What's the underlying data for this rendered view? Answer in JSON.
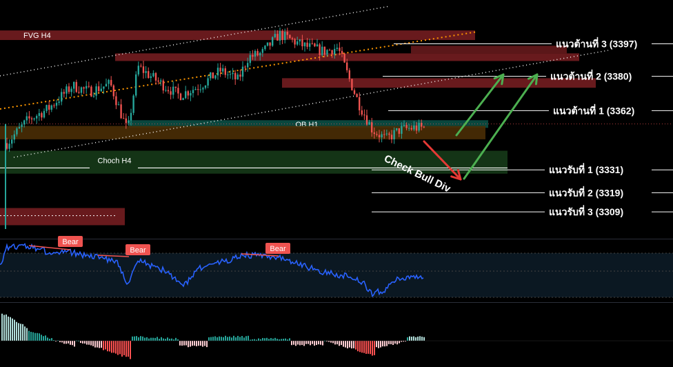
{
  "chart_data": {
    "type": "candlestick",
    "title": "",
    "ylim": [
      3300,
      3412
    ],
    "zones": [
      {
        "label": "FVG H4",
        "kind": "fvg",
        "from": 3404,
        "to": 3399
      },
      {
        "label": "",
        "kind": "fvg",
        "from": 3392,
        "to": 3388
      },
      {
        "label": "",
        "kind": "fvg",
        "from": 3396,
        "to": 3392
      },
      {
        "label": "",
        "kind": "fvg",
        "from": 3379,
        "to": 3374
      },
      {
        "label": "OB H1",
        "kind": "ob",
        "from": 3357,
        "to": 3353
      },
      {
        "label": "",
        "kind": "demand",
        "from": 3354,
        "to": 3347
      },
      {
        "label": "Choch H4",
        "kind": "choch",
        "from": 3341,
        "to": 3329
      },
      {
        "label": "",
        "kind": "fvg",
        "from": 3311,
        "to": 3302
      }
    ],
    "levels": [
      {
        "label": "แนวต้านที่ 3 (3397)",
        "value": 3397
      },
      {
        "label": "แนวต้านที่ 2 (3380)",
        "value": 3380
      },
      {
        "label": "แนวต้านที่ 1 (3362)",
        "value": 3362
      },
      {
        "label": "แนวรับที่ 1 (3331)",
        "value": 3331
      },
      {
        "label": "แนวรับที่ 2 (3319)",
        "value": 3319
      },
      {
        "label": "แนวรับที่ 3 (3309)",
        "value": 3309
      }
    ],
    "annotation": "Check Bull Div",
    "divergence_labels": [
      "Bear",
      "Bear",
      "Bear"
    ],
    "colors": {
      "bull": "#26a69a",
      "bear": "#ef5350",
      "fvg": "#7a1f22",
      "ob": "#0b4f45",
      "demand": "#4a2e05",
      "choch": "#163a18",
      "rsi": "#2962ff",
      "arrow_up": "#4caf50",
      "arrow_down": "#e53935",
      "level_text": "#ffffff"
    }
  }
}
